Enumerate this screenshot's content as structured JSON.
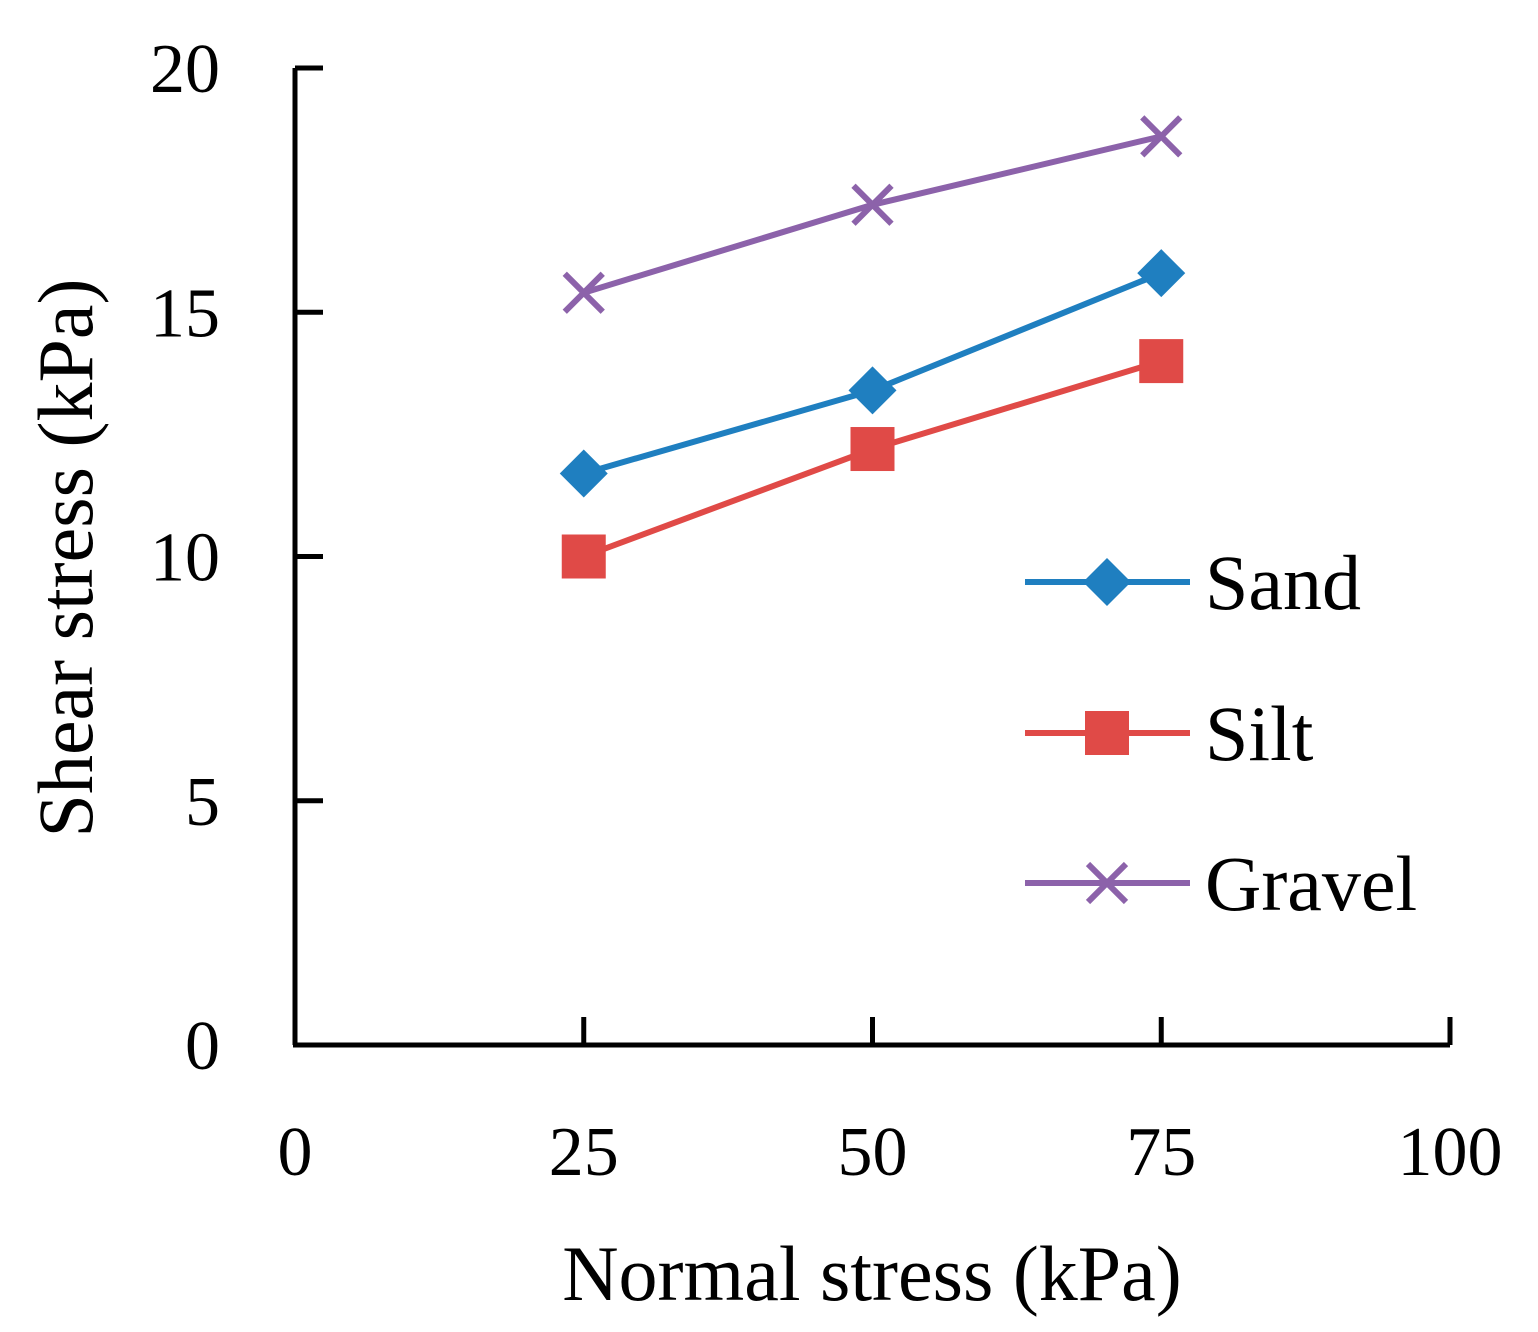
{
  "chart_data": {
    "type": "line",
    "title": "",
    "xlabel": "Normal stress (kPa)",
    "ylabel": "Shear stress (kPa)",
    "xlim": [
      0,
      100
    ],
    "ylim": [
      0,
      20
    ],
    "xticks": [
      0,
      25,
      50,
      75,
      100
    ],
    "yticks": [
      0,
      5,
      10,
      15,
      20
    ],
    "x": [
      25,
      50,
      75
    ],
    "series": [
      {
        "name": "Sand",
        "values": [
          11.7,
          13.4,
          15.8
        ],
        "color": "#1f7fc0",
        "marker": "diamond"
      },
      {
        "name": "Silt",
        "values": [
          10.0,
          12.2,
          14.0
        ],
        "color": "#e04a47",
        "marker": "square"
      },
      {
        "name": "Gravel",
        "values": [
          15.4,
          17.2,
          18.6
        ],
        "color": "#8c62aa",
        "marker": "x"
      }
    ],
    "legend": "right",
    "grid": false
  }
}
